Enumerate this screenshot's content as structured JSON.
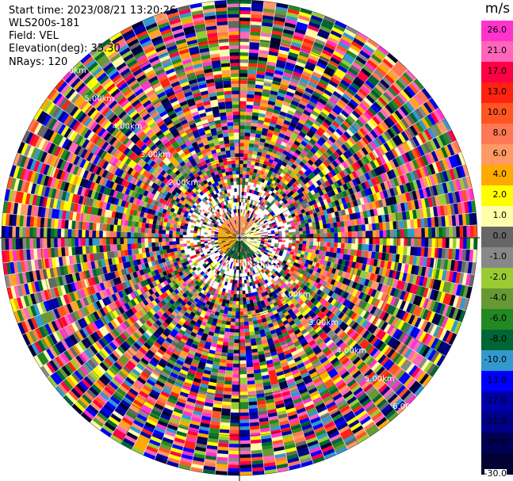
{
  "info": {
    "start_time": "Start time: 2023/08/21 13:20:26",
    "instrument": "WLS200s-181",
    "field": "Field: VEL",
    "elevation": "Elevation(deg): 35.30",
    "nrays": "NRays: 120"
  },
  "colorbar": {
    "unit": "m/s",
    "ticks": [
      "26.0",
      "21.0",
      "17.0",
      "13.0",
      "10.0",
      "8.0",
      "6.0",
      "4.0",
      "2.0",
      "1.0",
      "0.0",
      "-1.0",
      "-2.0",
      "-4.0",
      "-6.0",
      "-8.0",
      "-10.0",
      "-13.0",
      "-17.0",
      "-21.0",
      "-26.0",
      "-30.0"
    ],
    "colors": [
      "#ff33cc",
      "#ff66bb",
      "#ff0044",
      "#ff2211",
      "#ff5522",
      "#ff7755",
      "#ff9966",
      "#ffaa00",
      "#ffff00",
      "#ffffaa",
      "#666666",
      "#888888",
      "#99cc33",
      "#669933",
      "#228822",
      "#006633",
      "#3399cc",
      "#0000ff",
      "#0000aa",
      "#000088",
      "#000055",
      "#000033"
    ]
  },
  "chart_data": {
    "type": "heatmap",
    "title": "",
    "projection": "polar-ppi",
    "nrays": 120,
    "max_range_km": 6.0,
    "range_ring_labels": [
      "1.00km",
      "1.00km",
      "2.00km",
      "2.00km",
      "3.00km",
      "3.00km",
      "4.00km",
      "4.00km",
      "5.00km",
      "5.00km",
      "6.00km",
      "6.00km"
    ],
    "inner_field": {
      "radius_km": 0.55,
      "north_half_color": "#ff9966",
      "south_half_color": "#006633",
      "east_color": "#ffffaa",
      "west_color": "#ffaa00"
    },
    "outer_field": "noise"
  }
}
